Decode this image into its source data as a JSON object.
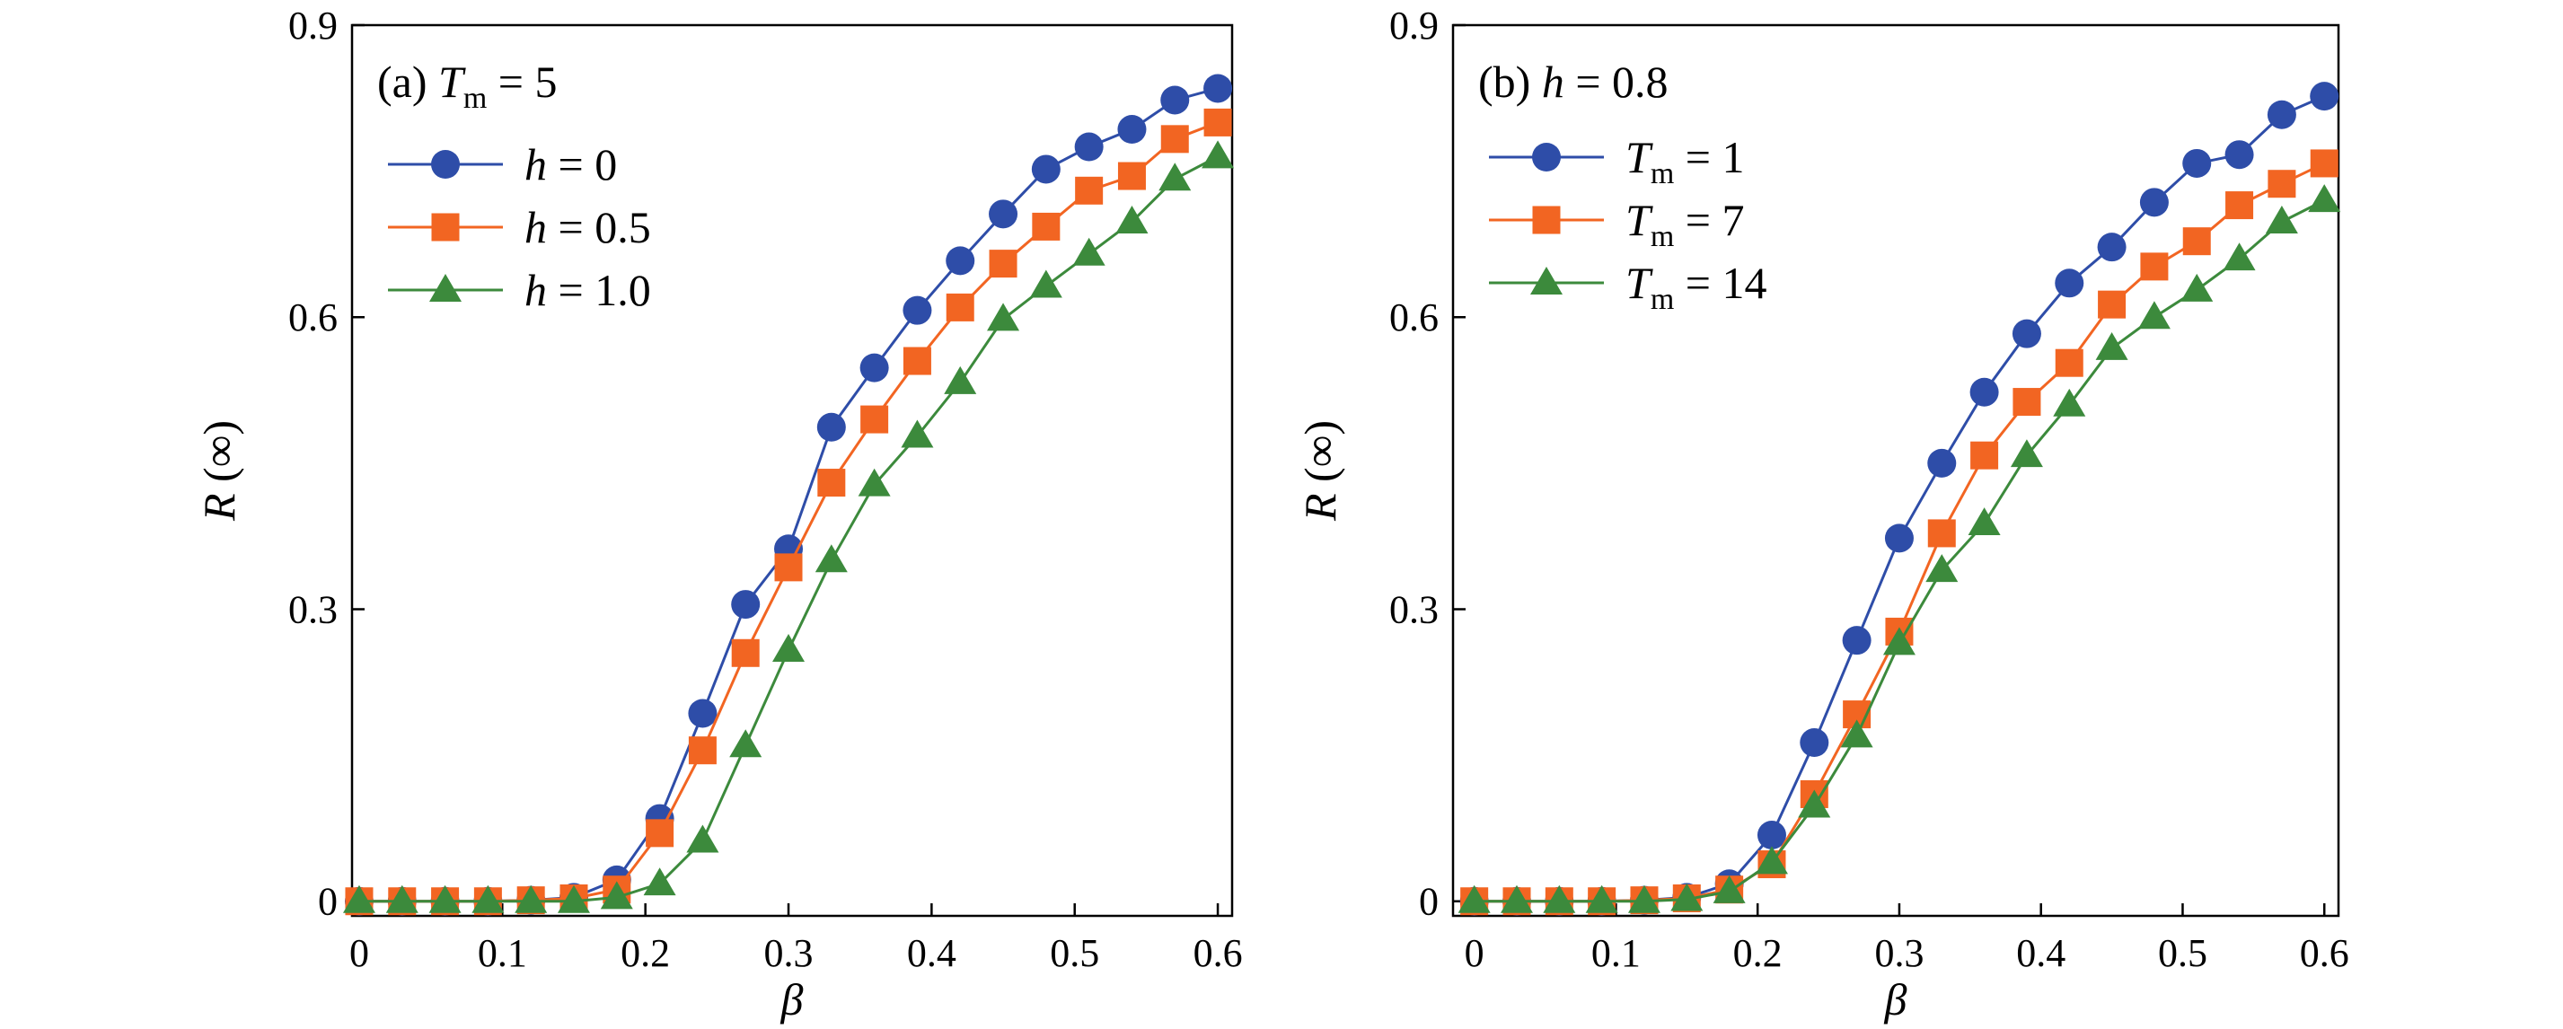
{
  "colors": {
    "blue": "#2E4DA8",
    "orange": "#F26522",
    "green": "#3C8A3C"
  },
  "chart_data": [
    {
      "type": "line",
      "annotation": {
        "prefix": "(a) ",
        "var": "T",
        "sub": "m",
        "suffix": " = 5"
      },
      "xlabel": "β",
      "ylabel": "R (∞)",
      "xlim": [
        -0.005,
        0.61
      ],
      "ylim": [
        -0.015,
        0.9
      ],
      "xticks": [
        0,
        0.1,
        0.2,
        0.3,
        0.4,
        0.5,
        0.6
      ],
      "xtick_labels": [
        "0",
        "0.1",
        "0.2",
        "0.3",
        "0.4",
        "0.5",
        "0.6"
      ],
      "yticks": [
        0,
        0.3,
        0.6,
        0.9
      ],
      "ytick_labels": [
        "0",
        "0.3",
        "0.6",
        "0.9"
      ],
      "grid": false,
      "legend": "top-left",
      "x": [
        0,
        0.03,
        0.06,
        0.09,
        0.12,
        0.15,
        0.18,
        0.21,
        0.24,
        0.27,
        0.3,
        0.33,
        0.36,
        0.39,
        0.42,
        0.45,
        0.48,
        0.51,
        0.54,
        0.57,
        0.6
      ],
      "series": [
        {
          "name": "h = 0",
          "var": "h",
          "sub": "",
          "suffix": " = 0",
          "marker": "circle",
          "color": "blue",
          "values": [
            0.0,
            0.0,
            0.0,
            0.0,
            0.001,
            0.004,
            0.022,
            0.085,
            0.193,
            0.305,
            0.362,
            0.487,
            0.548,
            0.607,
            0.658,
            0.706,
            0.752,
            0.775,
            0.793,
            0.823,
            0.835
          ]
        },
        {
          "name": "h = 0.5",
          "var": "h",
          "sub": "",
          "suffix": " = 0.5",
          "marker": "square",
          "color": "orange",
          "values": [
            0.0,
            0.0,
            0.0,
            0.0,
            0.001,
            0.003,
            0.012,
            0.07,
            0.155,
            0.255,
            0.343,
            0.43,
            0.495,
            0.555,
            0.61,
            0.655,
            0.693,
            0.73,
            0.745,
            0.783,
            0.8
          ]
        },
        {
          "name": "h = 1.0",
          "var": "h",
          "sub": "",
          "suffix": " = 1.0",
          "marker": "triangle",
          "color": "green",
          "values": [
            0.0,
            0.0,
            0.0,
            0.0,
            0.0,
            0.0,
            0.004,
            0.018,
            0.062,
            0.16,
            0.258,
            0.35,
            0.428,
            0.478,
            0.533,
            0.598,
            0.632,
            0.665,
            0.698,
            0.742,
            0.765
          ]
        }
      ]
    },
    {
      "type": "line",
      "annotation": {
        "prefix": "(b) ",
        "var": "h",
        "sub": "",
        "suffix": " = 0.8"
      },
      "xlabel": "β",
      "ylabel": "R (∞)",
      "xlim": [
        -0.015,
        0.61
      ],
      "ylim": [
        -0.015,
        0.9
      ],
      "xticks": [
        0,
        0.1,
        0.2,
        0.3,
        0.4,
        0.5,
        0.6
      ],
      "xtick_labels": [
        "0",
        "0.1",
        "0.2",
        "0.3",
        "0.4",
        "0.5",
        "0.6"
      ],
      "yticks": [
        0,
        0.3,
        0.6,
        0.9
      ],
      "ytick_labels": [
        "0",
        "0.3",
        "0.6",
        "0.9"
      ],
      "grid": false,
      "legend": "top-left",
      "x": [
        0,
        0.03,
        0.06,
        0.09,
        0.12,
        0.15,
        0.18,
        0.21,
        0.24,
        0.27,
        0.3,
        0.33,
        0.36,
        0.39,
        0.42,
        0.45,
        0.48,
        0.51,
        0.54,
        0.57,
        0.6
      ],
      "series": [
        {
          "name": "Tm = 1",
          "var": "T",
          "sub": "m",
          "suffix": " = 1",
          "marker": "circle",
          "color": "blue",
          "values": [
            0.0,
            0.0,
            0.0,
            0.0,
            0.001,
            0.004,
            0.018,
            0.068,
            0.163,
            0.268,
            0.373,
            0.45,
            0.523,
            0.583,
            0.635,
            0.672,
            0.718,
            0.758,
            0.767,
            0.808,
            0.827
          ]
        },
        {
          "name": "Tm = 7",
          "var": "T",
          "sub": "m",
          "suffix": " = 7",
          "marker": "square",
          "color": "orange",
          "values": [
            0.0,
            0.0,
            0.0,
            0.0,
            0.001,
            0.003,
            0.012,
            0.038,
            0.11,
            0.192,
            0.277,
            0.378,
            0.458,
            0.513,
            0.553,
            0.613,
            0.652,
            0.678,
            0.715,
            0.737,
            0.758
          ]
        },
        {
          "name": "Tm = 14",
          "var": "T",
          "sub": "m",
          "suffix": " = 14",
          "marker": "triangle",
          "color": "green",
          "values": [
            0.0,
            0.0,
            0.0,
            0.0,
            0.0,
            0.002,
            0.01,
            0.04,
            0.098,
            0.17,
            0.265,
            0.34,
            0.388,
            0.458,
            0.51,
            0.568,
            0.6,
            0.628,
            0.66,
            0.698,
            0.72
          ]
        }
      ]
    }
  ]
}
